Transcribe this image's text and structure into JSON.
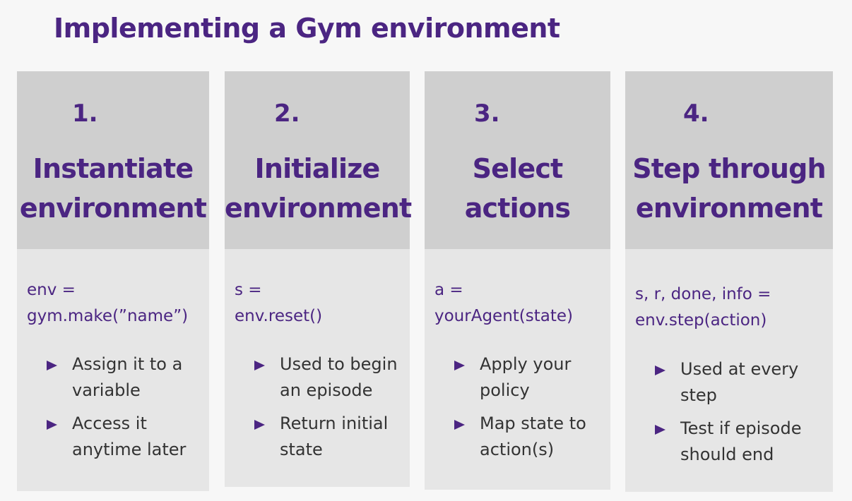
{
  "title": "Implementing a Gym environment",
  "colors": {
    "accent": "#4b2582",
    "card_head": "#cfcfcf",
    "card_body": "#e6e6e6",
    "text": "#333333"
  },
  "icons": {
    "bullet": "triangle-bullet-icon"
  },
  "cards": [
    {
      "number": "1.",
      "title_lines": [
        "Instantiate",
        "environment"
      ],
      "code_lines": [
        "env =",
        "gym.make(”name”)"
      ],
      "bullets": [
        [
          "Assign it to a",
          "variable"
        ],
        [
          "Access it",
          "anytime later"
        ]
      ]
    },
    {
      "number": "2.",
      "title_lines": [
        "Initialize",
        "environment"
      ],
      "code_lines": [
        "s =",
        "env.reset()"
      ],
      "bullets": [
        [
          "Used to begin",
          "an episode"
        ],
        [
          "Return initial",
          "state"
        ]
      ]
    },
    {
      "number": "3.",
      "title_lines": [
        "Select",
        "actions"
      ],
      "code_lines": [
        "a =",
        "yourAgent(state)"
      ],
      "bullets": [
        [
          "Apply your",
          "policy"
        ],
        [
          "Map state to",
          "action(s)"
        ]
      ]
    },
    {
      "number": "4.",
      "title_lines": [
        "Step through",
        "environment"
      ],
      "code_lines": [
        "s,  r,  done,  info =",
        "env.step(action)"
      ],
      "bullets": [
        [
          "Used at every",
          "step"
        ],
        [
          "Test if episode",
          "should end"
        ]
      ]
    }
  ]
}
